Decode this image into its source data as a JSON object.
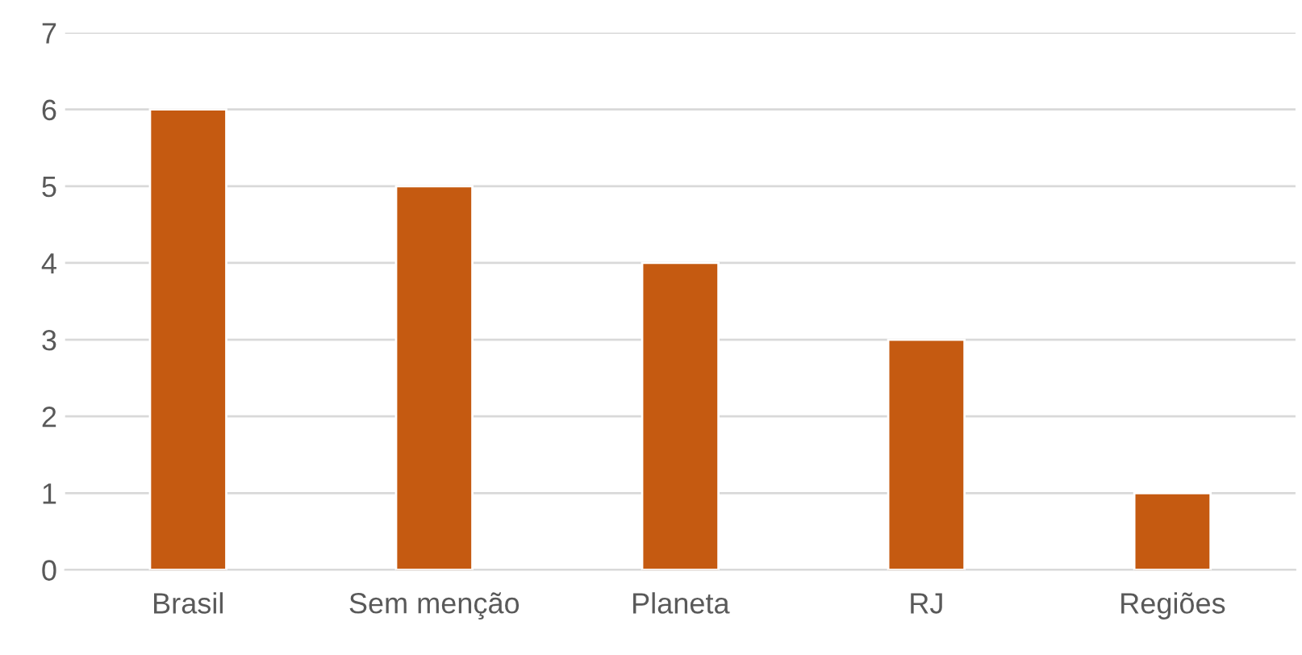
{
  "chart_data": {
    "type": "bar",
    "categories": [
      "Brasil",
      "Sem menção",
      "Planeta",
      "RJ",
      "Regiões"
    ],
    "values": [
      6,
      5,
      4,
      3,
      1
    ],
    "color": "#c55a11",
    "ylim": [
      0,
      7
    ],
    "yticks": [
      0,
      1,
      2,
      3,
      4,
      5,
      6,
      7
    ],
    "grid": "y"
  }
}
